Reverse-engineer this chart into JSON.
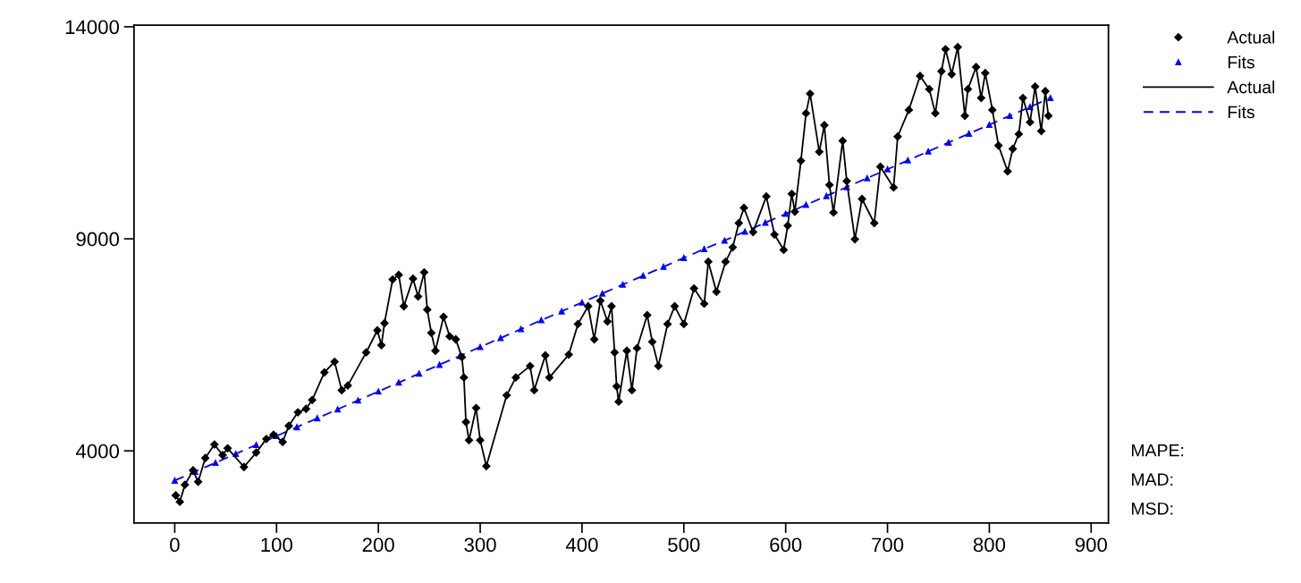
{
  "chart_data": {
    "type": "line",
    "xlim": [
      -40,
      917
    ],
    "ylim": [
      2300,
      14040
    ],
    "xticks": [
      0,
      100,
      200,
      300,
      400,
      500,
      600,
      700,
      800,
      900
    ],
    "yticks": [
      4000,
      9000,
      14000
    ],
    "grid": false,
    "legend": "top right",
    "annotations": [
      "MAPE:",
      "MAD:",
      "MSD:"
    ],
    "series": [
      {
        "name": "Actual",
        "color": "#000000",
        "marker": "diamond",
        "line_style": "solid",
        "x": [
          1,
          5,
          10,
          18,
          23,
          30,
          39,
          47,
          52,
          68,
          80,
          90,
          97,
          106,
          112,
          121,
          129,
          135,
          147,
          157,
          164,
          170,
          188,
          199,
          203,
          206,
          214,
          220,
          225,
          234,
          239,
          245,
          248,
          252,
          256,
          264,
          270,
          276,
          282,
          284,
          286,
          289,
          296,
          300,
          306,
          326,
          335,
          349,
          353,
          364,
          368,
          387,
          396,
          406,
          412,
          418,
          425,
          429,
          432,
          434,
          436,
          444,
          449,
          454,
          464,
          469,
          475,
          484,
          491,
          500,
          510,
          520,
          524,
          532,
          541,
          548,
          554,
          559,
          568,
          581,
          589,
          598,
          602,
          606,
          609,
          615,
          620,
          624,
          633,
          638,
          643,
          647,
          656,
          660,
          668,
          675,
          687,
          693,
          706,
          710,
          721,
          732,
          741,
          747,
          753,
          757,
          763,
          769,
          776,
          779,
          787,
          792,
          796,
          803,
          809,
          818,
          823,
          829,
          833,
          840,
          845,
          851,
          855,
          858
        ],
        "values": [
          2950,
          2800,
          3200,
          3540,
          3270,
          3830,
          4150,
          3900,
          4060,
          3620,
          3960,
          4280,
          4380,
          4210,
          4590,
          4910,
          4990,
          5200,
          5850,
          6100,
          5430,
          5540,
          6320,
          6840,
          6490,
          7010,
          8040,
          8150,
          7410,
          8060,
          7640,
          8210,
          7330,
          6780,
          6360,
          7160,
          6700,
          6630,
          6210,
          5730,
          4680,
          4250,
          5010,
          4250,
          3640,
          5310,
          5730,
          6000,
          5430,
          6250,
          5730,
          6270,
          6990,
          7410,
          6630,
          7540,
          7050,
          7410,
          6320,
          5520,
          5160,
          6360,
          5430,
          6420,
          7200,
          6570,
          6000,
          6990,
          7410,
          6990,
          7830,
          7470,
          8460,
          7750,
          8460,
          8800,
          9370,
          9730,
          9160,
          10000,
          9100,
          8740,
          9310,
          10060,
          9640,
          10840,
          11960,
          12420,
          11050,
          11680,
          10270,
          9620,
          11310,
          10360,
          8990,
          9940,
          9370,
          10700,
          10210,
          11410,
          12040,
          12840,
          12530,
          11960,
          12950,
          13470,
          12880,
          13520,
          11900,
          12530,
          13050,
          12320,
          12910,
          12040,
          11200,
          10590,
          11120,
          11470,
          12320,
          11750,
          12590,
          11540,
          12480,
          11900
        ]
      },
      {
        "name": "Fits",
        "color": "#0000ff",
        "marker": "triangle",
        "line_style": "dashed",
        "x": [
          0,
          20,
          40,
          60,
          80,
          100,
          120,
          140,
          160,
          180,
          200,
          220,
          240,
          260,
          280,
          300,
          320,
          340,
          360,
          380,
          400,
          420,
          440,
          460,
          480,
          500,
          520,
          540,
          560,
          580,
          600,
          620,
          640,
          660,
          680,
          700,
          720,
          740,
          760,
          780,
          800,
          820,
          840,
          860
        ],
        "values": [
          3300,
          3510,
          3720,
          3930,
          4140,
          4350,
          4560,
          4770,
          4980,
          5190,
          5400,
          5610,
          5820,
          6030,
          6240,
          6450,
          6660,
          6870,
          7080,
          7290,
          7500,
          7710,
          7920,
          8130,
          8340,
          8550,
          8760,
          8960,
          9170,
          9380,
          9590,
          9800,
          10010,
          10220,
          10430,
          10640,
          10850,
          11060,
          11270,
          11480,
          11690,
          11900,
          12110,
          12320
        ]
      }
    ]
  }
}
